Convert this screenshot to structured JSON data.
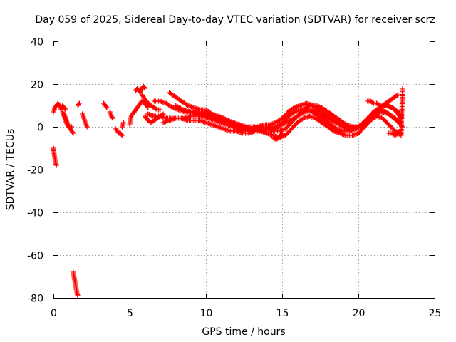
{
  "chart_data": {
    "type": "scatter",
    "title": "Day 059 of 2025, Sidereal Day-to-day VTEC variation (SDTVAR) for receiver scrz",
    "xlabel": "GPS time / hours",
    "ylabel": "SDTVAR / TECUs",
    "xlim": [
      0,
      25
    ],
    "ylim": [
      -80,
      40
    ],
    "xticks": [
      0,
      5,
      10,
      15,
      20,
      25
    ],
    "yticks": [
      -80,
      -60,
      -40,
      -20,
      0,
      20,
      40
    ],
    "xtick_labels": [
      "0",
      "5",
      "10",
      "15",
      "20",
      "25"
    ],
    "ytick_labels": [
      "-80",
      "-60",
      "-40",
      "-20",
      "0",
      "20",
      "40"
    ],
    "grid": true,
    "marker": "+",
    "color": "#ff0000",
    "segments": [
      {
        "x": [
          0.0,
          0.1,
          0.2,
          0.3,
          0.4,
          0.5,
          0.6,
          0.7,
          0.8
        ],
        "y": [
          7,
          9,
          10,
          11,
          10,
          8,
          10,
          9,
          8
        ]
      },
      {
        "x": [
          0.0,
          0.05,
          0.1,
          0.15,
          0.2
        ],
        "y": [
          -10,
          -13,
          -15,
          -17,
          -18
        ]
      },
      {
        "x": [
          0.6,
          0.7,
          0.8,
          0.9,
          1.0,
          1.1,
          1.2,
          1.3
        ],
        "y": [
          7,
          5,
          3,
          1,
          0,
          -1,
          -2,
          -3
        ]
      },
      {
        "x": [
          0.7,
          0.8,
          0.9,
          1.0,
          1.1,
          1.2
        ],
        "y": [
          6,
          4,
          2,
          0,
          -1,
          0
        ]
      },
      {
        "x": [
          1.3,
          1.35,
          1.4,
          1.45,
          1.5,
          1.55,
          1.6
        ],
        "y": [
          -68,
          -70,
          -72,
          -74,
          -76,
          -78,
          -79
        ]
      },
      {
        "x": [
          1.6,
          1.7
        ],
        "y": [
          10,
          11
        ]
      },
      {
        "x": [
          1.9,
          2.0,
          2.1,
          2.2
        ],
        "y": [
          6,
          4,
          2,
          0
        ]
      },
      {
        "x": [
          3.3,
          3.4,
          3.5
        ],
        "y": [
          11,
          10,
          9
        ]
      },
      {
        "x": [
          3.7,
          3.8,
          3.9
        ],
        "y": [
          7,
          5,
          4
        ]
      },
      {
        "x": [
          4.1,
          4.2,
          4.3,
          4.4,
          4.5
        ],
        "y": [
          -1,
          -2,
          -3,
          -3,
          -4
        ]
      },
      {
        "x": [
          4.5,
          4.6
        ],
        "y": [
          0,
          2
        ]
      },
      {
        "x": [
          5.0,
          5.1,
          5.3
        ],
        "y": [
          1,
          5,
          7
        ]
      },
      {
        "x": [
          5.2,
          5.4,
          5.6,
          5.8,
          6.0,
          6.2
        ],
        "y": [
          6,
          8,
          10,
          12,
          11,
          9
        ]
      },
      {
        "x": [
          5.4,
          5.5,
          5.6,
          5.7,
          5.8,
          5.9,
          6.0
        ],
        "y": [
          17,
          18,
          17,
          16,
          18,
          19,
          18
        ]
      },
      {
        "x": [
          5.8,
          6.0,
          6.2,
          6.4,
          6.6,
          6.8,
          7.0
        ],
        "y": [
          15,
          13,
          11,
          10,
          9,
          8,
          8
        ]
      },
      {
        "x": [
          6.0,
          6.2,
          6.4,
          6.6,
          6.8,
          7.0,
          7.2
        ],
        "y": [
          5,
          3,
          2,
          3,
          4,
          5,
          6
        ]
      },
      {
        "x": [
          6.2,
          6.6,
          7.0,
          7.4,
          7.8,
          8.2,
          8.6,
          9.0,
          9.4,
          9.8,
          10.2,
          10.6,
          11.0,
          11.4,
          11.8,
          12.2,
          12.6,
          13.0,
          13.4,
          13.8,
          14.2,
          14.6,
          15.0,
          15.4,
          15.8,
          16.2,
          16.6,
          17.0,
          17.4,
          17.8,
          18.2,
          18.6,
          19.0,
          19.4,
          19.8,
          20.2,
          20.6,
          21.0,
          21.4,
          21.8,
          22.2,
          22.6,
          22.8
        ],
        "y": [
          6,
          5,
          5,
          4,
          4,
          4,
          4,
          5,
          5,
          5,
          4,
          3,
          2,
          1,
          0,
          -1,
          -2,
          -2,
          -2,
          -1,
          -1,
          0,
          2,
          5,
          7,
          8,
          8,
          7,
          5,
          3,
          1,
          -1,
          -2,
          -2,
          -1,
          1,
          4,
          7,
          8,
          7,
          5,
          3,
          2
        ]
      },
      {
        "x": [
          6.6,
          7.0,
          7.4,
          7.8,
          8.2,
          8.6,
          9.0,
          9.4,
          9.8,
          10.2,
          10.6,
          11.0,
          11.4,
          11.8,
          12.2,
          12.6,
          13.0,
          13.4,
          13.8,
          14.2,
          14.6,
          15.0,
          15.4,
          15.8,
          16.2,
          16.6,
          17.0,
          17.4,
          17.8,
          18.2,
          18.6,
          19.0,
          19.4,
          19.8,
          20.2,
          20.6,
          21.0,
          21.4,
          21.8,
          22.2,
          22.6,
          22.8
        ],
        "y": [
          12,
          12,
          11,
          9,
          8,
          7,
          7,
          7,
          7,
          6,
          5,
          4,
          3,
          2,
          1,
          0,
          0,
          0,
          1,
          1,
          2,
          4,
          7,
          9,
          10,
          11,
          10,
          8,
          6,
          4,
          2,
          0,
          -1,
          -1,
          0,
          3,
          6,
          9,
          10,
          9,
          7,
          5
        ]
      },
      {
        "x": [
          7.6,
          8.0,
          8.4,
          8.8,
          9.2,
          9.6,
          10.0,
          10.4,
          10.8,
          11.2,
          11.6,
          12.0,
          12.4,
          12.8,
          13.2,
          13.6,
          14.0,
          14.4,
          14.8,
          15.2,
          15.6,
          16.0,
          16.4,
          16.8,
          17.2,
          17.6,
          18.0,
          18.4,
          18.8,
          19.2,
          19.6,
          20.0,
          20.4,
          20.8,
          21.2,
          21.6,
          22.0,
          22.4,
          22.8
        ],
        "y": [
          16,
          14,
          12,
          10,
          9,
          8,
          8,
          6,
          5,
          4,
          2,
          1,
          0,
          -1,
          -1,
          -1,
          -1,
          -2,
          -2,
          -1,
          2,
          5,
          8,
          10,
          10,
          9,
          7,
          5,
          3,
          1,
          0,
          0,
          2,
          5,
          8,
          10,
          10,
          8,
          4
        ]
      },
      {
        "x": [
          7.2,
          7.6,
          8.0,
          8.4,
          8.8,
          9.2,
          9.6,
          10.0,
          10.4,
          10.8,
          11.2,
          11.6,
          12.0,
          12.4,
          12.8,
          13.2,
          13.6,
          14.0,
          14.4,
          14.8,
          15.2,
          15.6,
          16.0,
          16.4,
          16.8,
          17.2,
          17.6,
          18.0,
          18.4,
          18.8,
          19.2,
          19.6,
          20.0,
          20.4,
          20.8,
          21.2,
          21.6,
          22.0,
          22.4,
          22.8
        ],
        "y": [
          2,
          3,
          4,
          4,
          3,
          3,
          3,
          2,
          1,
          0,
          -1,
          -2,
          -2,
          -3,
          -3,
          -2,
          -2,
          -3,
          -4,
          -5,
          -4,
          -1,
          2,
          4,
          5,
          4,
          2,
          0,
          -2,
          -3,
          -4,
          -4,
          -3,
          0,
          3,
          5,
          4,
          1,
          -2,
          -3
        ]
      },
      {
        "x": [
          8.0,
          8.5,
          9.0,
          9.5,
          10.0,
          10.5,
          11.0,
          11.5,
          12.0,
          12.5,
          13.0,
          13.5,
          14.0,
          14.5,
          15.0,
          15.5,
          16.0,
          16.5,
          17.0,
          17.5,
          18.0,
          18.5,
          19.0,
          19.5,
          20.0,
          20.5,
          21.0,
          21.5,
          22.0,
          22.5,
          22.9
        ],
        "y": [
          10,
          8,
          7,
          6,
          5,
          4,
          3,
          2,
          1,
          0,
          -1,
          0,
          0,
          -1,
          1,
          3,
          5,
          7,
          8,
          6,
          4,
          2,
          0,
          -1,
          0,
          2,
          5,
          7,
          6,
          3,
          0
        ]
      },
      {
        "x": [
          20.6,
          20.8,
          21.0,
          21.2,
          21.4,
          21.6,
          21.8,
          22.0,
          22.2,
          22.4,
          22.6
        ],
        "y": [
          12,
          12,
          11,
          11,
          10,
          10,
          11,
          12,
          13,
          14,
          15
        ]
      },
      {
        "x": [
          22.0,
          22.2,
          22.4,
          22.6,
          22.8,
          22.9
        ],
        "y": [
          -3,
          -3,
          -4,
          -3,
          -4,
          18
        ]
      },
      {
        "x": [
          14.4,
          14.6,
          14.8,
          15.0
        ],
        "y": [
          -5,
          -6,
          -5,
          -3
        ]
      }
    ]
  }
}
